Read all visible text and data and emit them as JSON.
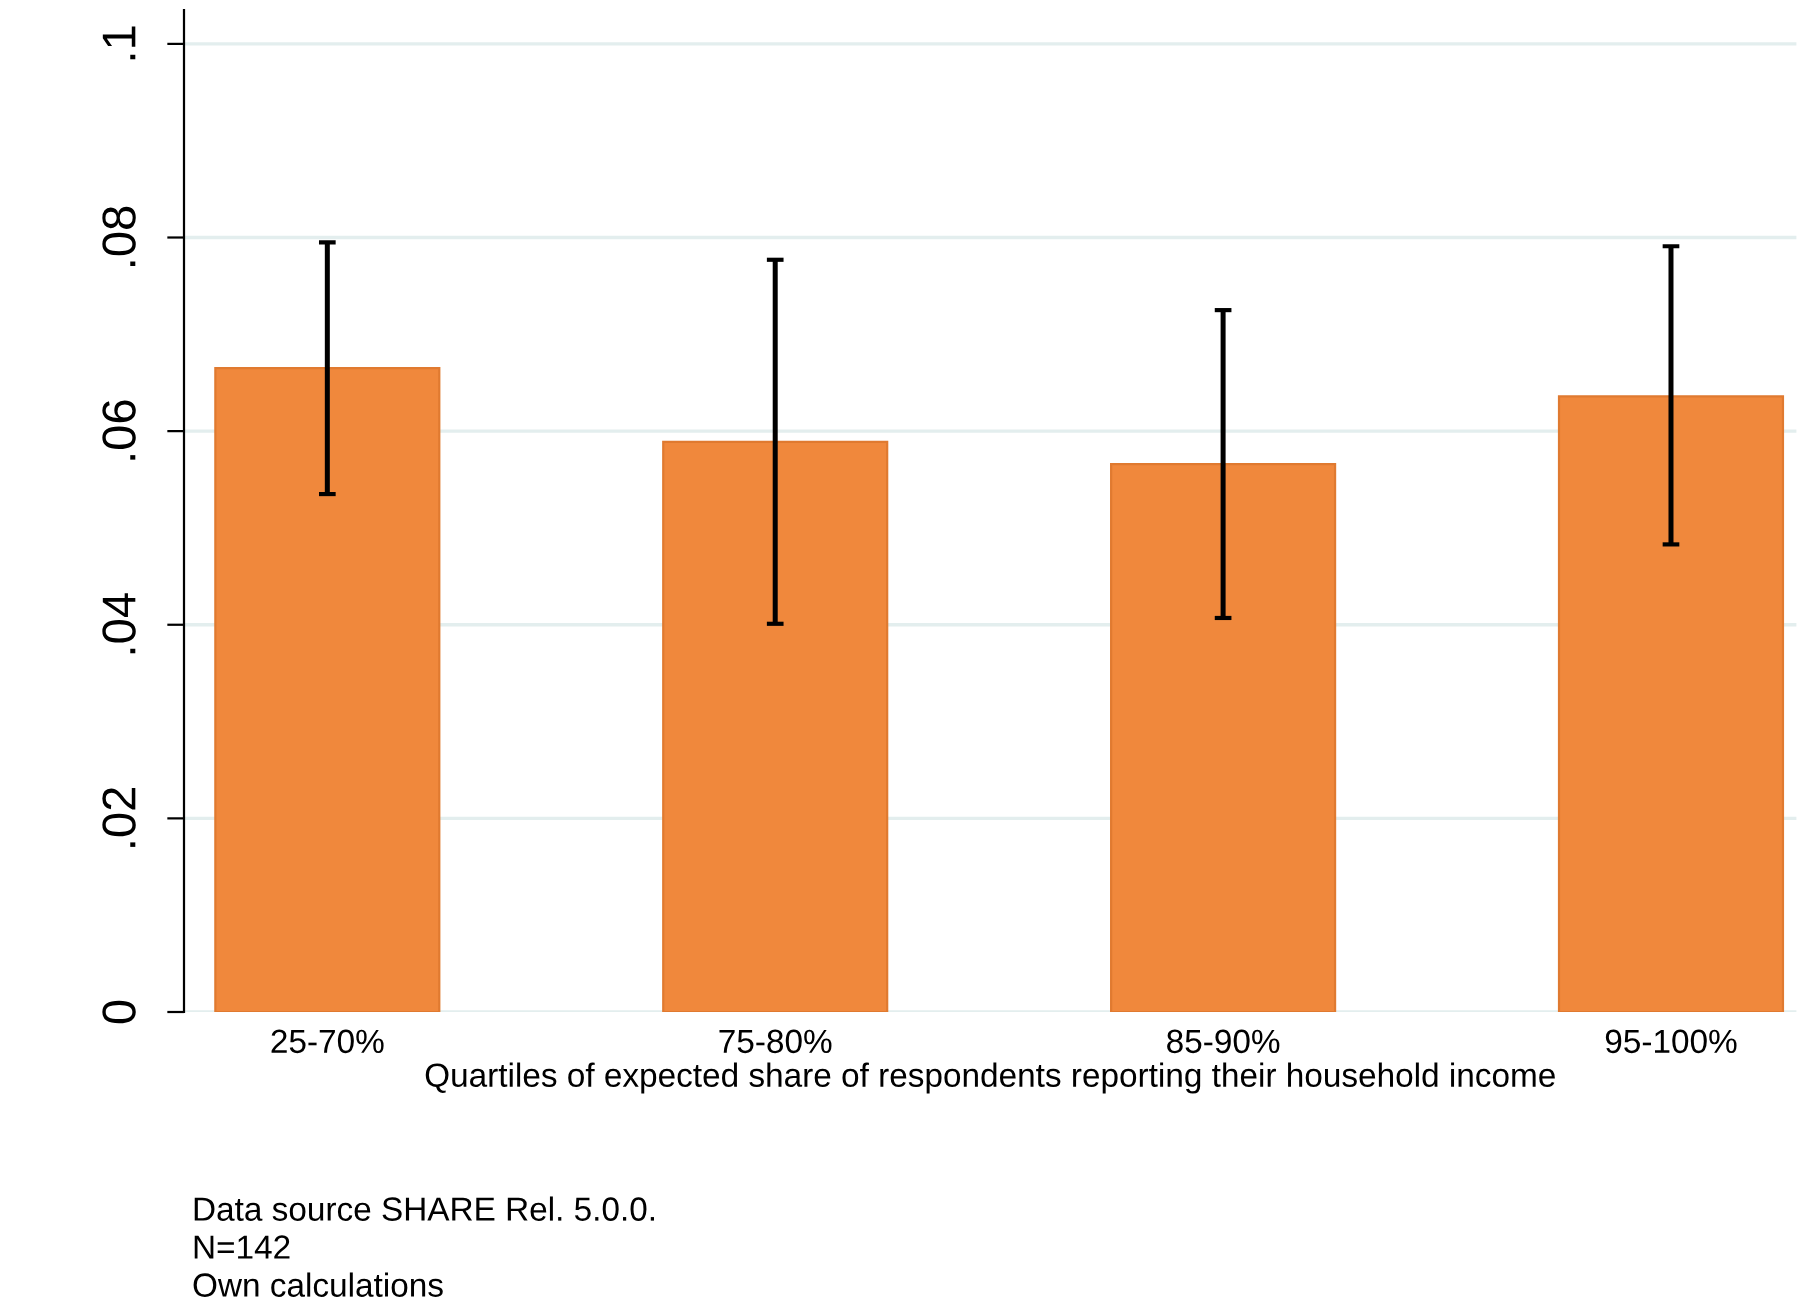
{
  "chart_data": {
    "type": "bar",
    "xlabel": "Quartiles of expected share of respondents reporting their household income",
    "categories": [
      "25-70%",
      "75-80%",
      "85-90%",
      "95-100%"
    ],
    "values": [
      0.0665,
      0.0589,
      0.0566,
      0.0636
    ],
    "errors": [
      [
        0.0535,
        0.0795
      ],
      [
        0.0401,
        0.0777
      ],
      [
        0.0407,
        0.0725
      ],
      [
        0.0483,
        0.0791
      ]
    ],
    "color": "#f0883c",
    "ylim": [
      0,
      0.1035
    ],
    "yticks": [
      0,
      {
        "value": 0.02,
        "label": ".02"
      },
      {
        "value": 0.04,
        "label": ".04"
      },
      {
        "value": 0.06,
        "label": ".06"
      },
      {
        "value": 0.08,
        "label": ".08"
      },
      {
        "value": 0.1,
        "label": ".1"
      }
    ],
    "grid": "y",
    "annotations": [
      "Data source SHARE Rel. 5.0.0.",
      "N=142",
      "Own calculations"
    ]
  }
}
